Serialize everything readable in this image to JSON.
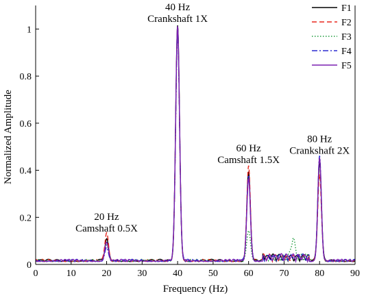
{
  "chart_data": {
    "type": "line",
    "title": "",
    "xlabel": "Frequency (Hz)",
    "ylabel": "Normalized Amplitude",
    "xlim": [
      0,
      90
    ],
    "ylim": [
      0,
      1.1
    ],
    "xticks": [
      0,
      10,
      20,
      30,
      40,
      50,
      60,
      70,
      80,
      90
    ],
    "yticks": [
      0,
      0.2,
      0.4,
      0.6,
      0.8,
      1
    ],
    "ytick_labels": [
      "0",
      "0.2",
      "0.4",
      "0.6",
      "0.8",
      "1"
    ],
    "grid": false,
    "legend_position": "top-right",
    "series": [
      {
        "name": "F1",
        "color": "#000000",
        "dash": "solid",
        "peaks": [
          [
            20,
            0.09
          ],
          [
            40,
            1.0
          ],
          [
            60,
            0.38
          ],
          [
            80,
            0.42
          ]
        ]
      },
      {
        "name": "F2",
        "color": "#e8261c",
        "dash": "dashed",
        "peaks": [
          [
            20,
            0.12
          ],
          [
            40,
            0.98
          ],
          [
            60,
            0.4
          ],
          [
            80,
            0.37
          ]
        ]
      },
      {
        "name": "F3",
        "color": "#1b9a3a",
        "dash": "dotted",
        "peaks": [
          [
            20,
            0.07
          ],
          [
            40,
            0.97
          ],
          [
            60,
            0.13
          ],
          [
            72.5,
            0.08
          ],
          [
            80,
            0.43
          ]
        ]
      },
      {
        "name": "F4",
        "color": "#2a2ad0",
        "dash": "dashdot",
        "peaks": [
          [
            20,
            0.06
          ],
          [
            40,
            0.96
          ],
          [
            60,
            0.36
          ],
          [
            80,
            0.45
          ]
        ]
      },
      {
        "name": "F5",
        "color": "#7a1fb0",
        "dash": "solid",
        "peaks": [
          [
            20,
            0.08
          ],
          [
            40,
            0.99
          ],
          [
            60,
            0.35
          ],
          [
            80,
            0.44
          ]
        ]
      }
    ],
    "annotations": [
      {
        "lines": [
          "40 Hz",
          "Crankshaft 1X"
        ],
        "x": 40,
        "y": 1.03
      },
      {
        "lines": [
          "60 Hz",
          "Camshaft 1.5X"
        ],
        "x": 60,
        "y": 0.43
      },
      {
        "lines": [
          "80 Hz",
          "Crankshaft 2X"
        ],
        "x": 80,
        "y": 0.47
      },
      {
        "lines": [
          "20 Hz",
          "Camshaft 0.5X"
        ],
        "x": 20,
        "y": 0.14
      }
    ]
  }
}
